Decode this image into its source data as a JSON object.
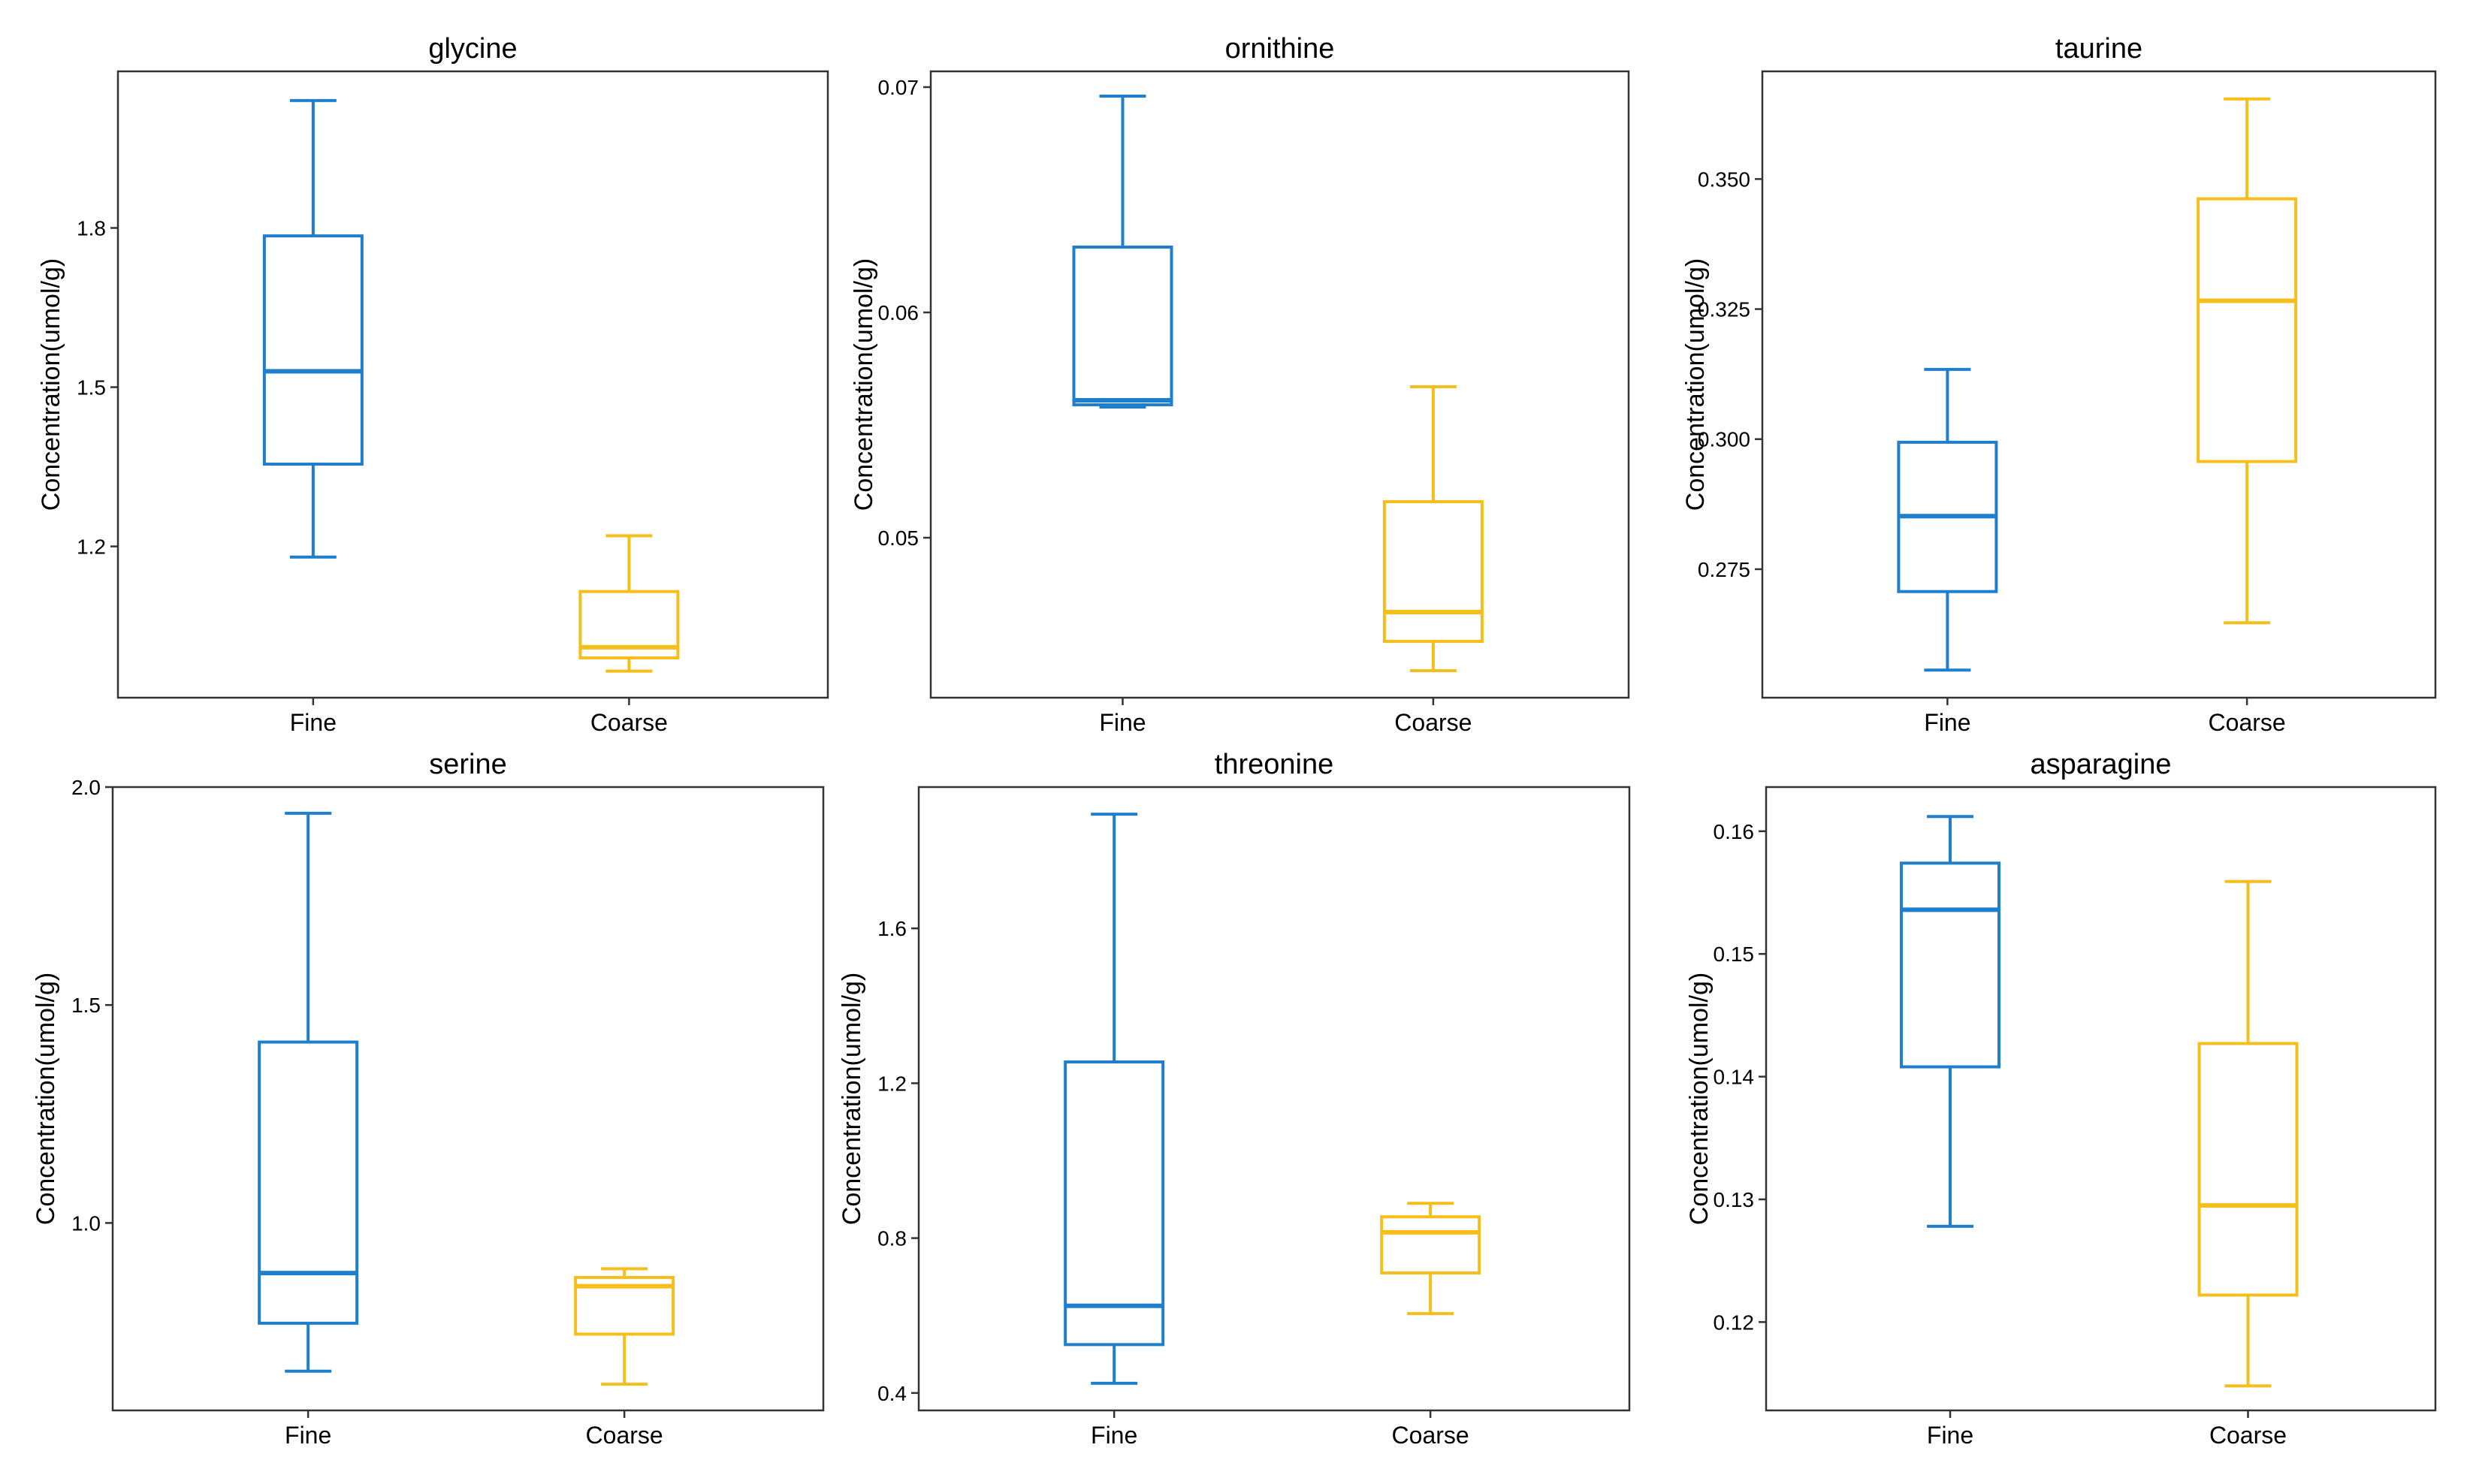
{
  "figure": {
    "ylabel": "Concentration(umol/g)",
    "categories": [
      "Fine",
      "Coarse"
    ],
    "colors": {
      "Fine": "#1F7FCC",
      "Coarse": "#F5BE1B",
      "axis": "#333333",
      "text": "#000000"
    }
  },
  "chart_data": [
    {
      "type": "box",
      "title": "glycine",
      "ylabel": "Concentration(umol/g)",
      "categories": [
        "Fine",
        "Coarse"
      ],
      "ylim": [
        0.915,
        2.095
      ],
      "yticks": [
        1.2,
        1.5,
        1.8
      ],
      "ytick_labels": [
        "1.2",
        "1.5",
        "1.8"
      ],
      "boxes": [
        {
          "name": "Fine",
          "whisker_low": 1.18,
          "q1": 1.355,
          "median": 1.53,
          "q3": 1.785,
          "whisker_high": 2.04
        },
        {
          "name": "Coarse",
          "whisker_low": 0.965,
          "q1": 0.99,
          "median": 1.01,
          "q3": 1.115,
          "whisker_high": 1.22
        }
      ]
    },
    {
      "type": "box",
      "title": "ornithine",
      "ylabel": "Concentration(umol/g)",
      "categories": [
        "Fine",
        "Coarse"
      ],
      "ylim": [
        0.0429,
        0.0707
      ],
      "yticks": [
        0.05,
        0.06,
        0.07
      ],
      "ytick_labels": [
        "0.05",
        "0.06",
        "0.07"
      ],
      "boxes": [
        {
          "name": "Fine",
          "whisker_low": 0.0558,
          "q1": 0.0559,
          "median": 0.0561,
          "q3": 0.0629,
          "whisker_high": 0.0696
        },
        {
          "name": "Coarse",
          "whisker_low": 0.0441,
          "q1": 0.0454,
          "median": 0.0467,
          "q3": 0.0516,
          "whisker_high": 0.0567
        }
      ]
    },
    {
      "type": "box",
      "title": "taurine",
      "ylabel": "Concentration(umol/g)",
      "categories": [
        "Fine",
        "Coarse"
      ],
      "ylim": [
        0.2503,
        0.3707
      ],
      "yticks": [
        0.275,
        0.3,
        0.325,
        0.35
      ],
      "ytick_labels": [
        "0.275",
        "0.300",
        "0.325",
        "0.350"
      ],
      "boxes": [
        {
          "name": "Fine",
          "whisker_low": 0.2556,
          "q1": 0.2707,
          "median": 0.2852,
          "q3": 0.2994,
          "whisker_high": 0.3134
        },
        {
          "name": "Coarse",
          "whisker_low": 0.2647,
          "q1": 0.2957,
          "median": 0.3266,
          "q3": 0.3462,
          "whisker_high": 0.3654
        }
      ]
    },
    {
      "type": "box",
      "title": "serine",
      "ylabel": "Concentration(umol/g)",
      "categories": [
        "Fine",
        "Coarse"
      ],
      "ylim": [
        0.57,
        2.0
      ],
      "yticks": [
        1.0,
        1.5,
        2.0
      ],
      "ytick_labels": [
        "1.0",
        "1.5",
        "2.0"
      ],
      "boxes": [
        {
          "name": "Fine",
          "whisker_low": 0.66,
          "q1": 0.77,
          "median": 0.885,
          "q3": 1.415,
          "whisker_high": 1.94
        },
        {
          "name": "Coarse",
          "whisker_low": 0.63,
          "q1": 0.745,
          "median": 0.855,
          "q3": 0.875,
          "whisker_high": 0.895
        }
      ]
    },
    {
      "type": "box",
      "title": "threonine",
      "ylabel": "Concentration(umol/g)",
      "categories": [
        "Fine",
        "Coarse"
      ],
      "ylim": [
        0.355,
        1.965
      ],
      "yticks": [
        0.4,
        0.8,
        1.2,
        1.6
      ],
      "ytick_labels": [
        "0.4",
        "0.8",
        "1.2",
        "1.6"
      ],
      "boxes": [
        {
          "name": "Fine",
          "whisker_low": 0.425,
          "q1": 0.525,
          "median": 0.625,
          "q3": 1.255,
          "whisker_high": 1.895
        },
        {
          "name": "Coarse",
          "whisker_low": 0.605,
          "q1": 0.71,
          "median": 0.815,
          "q3": 0.855,
          "whisker_high": 0.89
        }
      ]
    },
    {
      "type": "box",
      "title": "asparagine",
      "ylabel": "Concentration(umol/g)",
      "categories": [
        "Fine",
        "Coarse"
      ],
      "ylim": [
        0.1128,
        0.1636
      ],
      "yticks": [
        0.12,
        0.13,
        0.14,
        0.15,
        0.16
      ],
      "ytick_labels": [
        "0.12",
        "0.13",
        "0.14",
        "0.15",
        "0.16"
      ],
      "boxes": [
        {
          "name": "Fine",
          "whisker_low": 0.1278,
          "q1": 0.1408,
          "median": 0.1536,
          "q3": 0.1574,
          "whisker_high": 0.1612
        },
        {
          "name": "Coarse",
          "whisker_low": 0.1148,
          "q1": 0.1222,
          "median": 0.1295,
          "q3": 0.1427,
          "whisker_high": 0.1559
        }
      ]
    }
  ]
}
